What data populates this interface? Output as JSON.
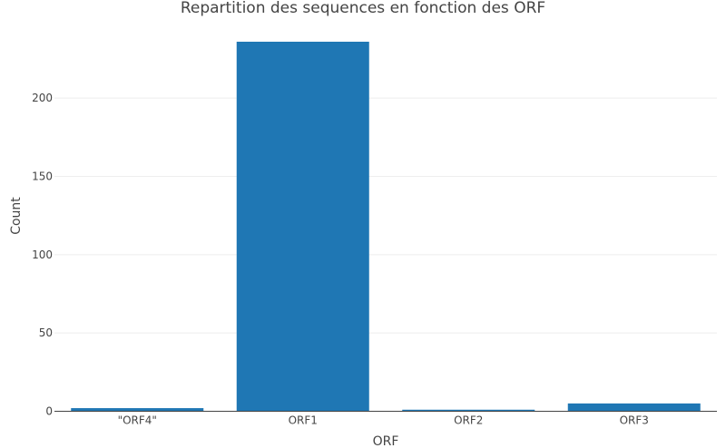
{
  "chart_data": {
    "type": "bar",
    "title": "Repartition des sequences en fonction des ORF",
    "xlabel": "ORF",
    "ylabel": "Count",
    "categories": [
      "\"ORF4\"",
      "ORF1",
      "ORF2",
      "ORF3"
    ],
    "values": [
      2,
      236,
      1,
      5
    ],
    "ylim": [
      0,
      236
    ],
    "yticks": [
      0,
      50,
      100,
      150,
      200
    ],
    "grid": true,
    "legend": "none",
    "colors": {
      "bar": "#1f77b4",
      "text": "#444444",
      "grid": "#eeeeee",
      "axis": "#444444"
    }
  }
}
